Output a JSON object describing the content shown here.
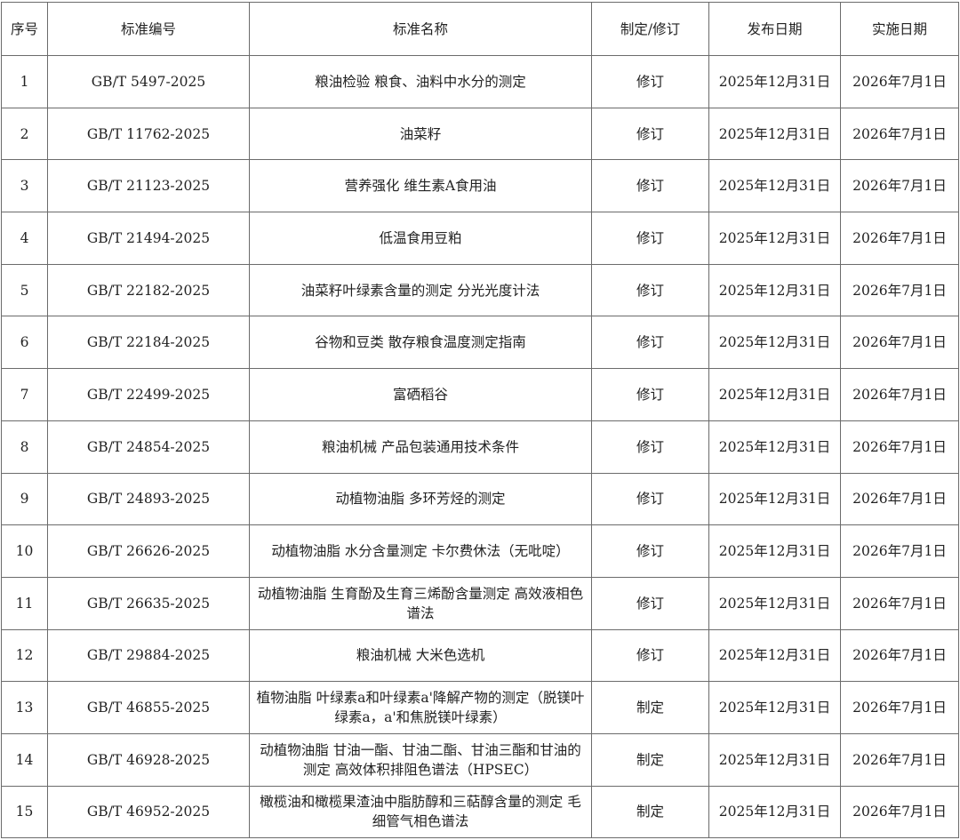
{
  "table": {
    "headers": [
      "序号",
      "标准编号",
      "标准名称",
      "制定/修订",
      "发布日期",
      "实施日期"
    ],
    "rows": [
      [
        "1",
        "GB/T 5497-2025",
        "粮油检验 粮食、油料中水分的测定",
        "修订",
        "2025年12月31日",
        "2026年7月1日"
      ],
      [
        "2",
        "GB/T 11762-2025",
        "油菜籽",
        "修订",
        "2025年12月31日",
        "2026年7月1日"
      ],
      [
        "3",
        "GB/T 21123-2025",
        "营养强化 维生素A食用油",
        "修订",
        "2025年12月31日",
        "2026年7月1日"
      ],
      [
        "4",
        "GB/T 21494-2025",
        "低温食用豆粕",
        "修订",
        "2025年12月31日",
        "2026年7月1日"
      ],
      [
        "5",
        "GB/T 22182-2025",
        "油菜籽叶绿素含量的测定 分光光度计法",
        "修订",
        "2025年12月31日",
        "2026年7月1日"
      ],
      [
        "6",
        "GB/T 22184-2025",
        "谷物和豆类 散存粮食温度测定指南",
        "修订",
        "2025年12月31日",
        "2026年7月1日"
      ],
      [
        "7",
        "GB/T 22499-2025",
        "富硒稻谷",
        "修订",
        "2025年12月31日",
        "2026年7月1日"
      ],
      [
        "8",
        "GB/T 24854-2025",
        "粮油机械 产品包装通用技术条件",
        "修订",
        "2025年12月31日",
        "2026年7月1日"
      ],
      [
        "9",
        "GB/T 24893-2025",
        "动植物油脂 多环芳烃的测定",
        "修订",
        "2025年12月31日",
        "2026年7月1日"
      ],
      [
        "10",
        "GB/T 26626-2025",
        "动植物油脂 水分含量测定 卡尔费休法（无吡啶）",
        "修订",
        "2025年12月31日",
        "2026年7月1日"
      ],
      [
        "11",
        "GB/T 26635-2025",
        "动植物油脂 生育酚及生育三烯酚含量测定 高效液相色谱法",
        "修订",
        "2025年12月31日",
        "2026年7月1日"
      ],
      [
        "12",
        "GB/T 29884-2025",
        "粮油机械 大米色选机",
        "修订",
        "2025年12月31日",
        "2026年7月1日"
      ],
      [
        "13",
        "GB/T 46855-2025",
        "植物油脂 叶绿素a和叶绿素a'降解产物的测定（脱镁叶绿素a，a'和焦脱镁叶绿素）",
        "制定",
        "2025年12月31日",
        "2026年7月1日"
      ],
      [
        "14",
        "GB/T 46928-2025",
        "动植物油脂 甘油一酯、甘油二酯、甘油三酯和甘油的测定 高效体积排阻色谱法（HPSEC）",
        "制定",
        "2025年12月31日",
        "2026年7月1日"
      ],
      [
        "15",
        "GB/T 46952-2025",
        "橄榄油和橄榄果渣油中脂肪醇和三萜醇含量的测定 毛细管气相色谱法",
        "制定",
        "2025年12月31日",
        "2026年7月1日"
      ]
    ]
  }
}
